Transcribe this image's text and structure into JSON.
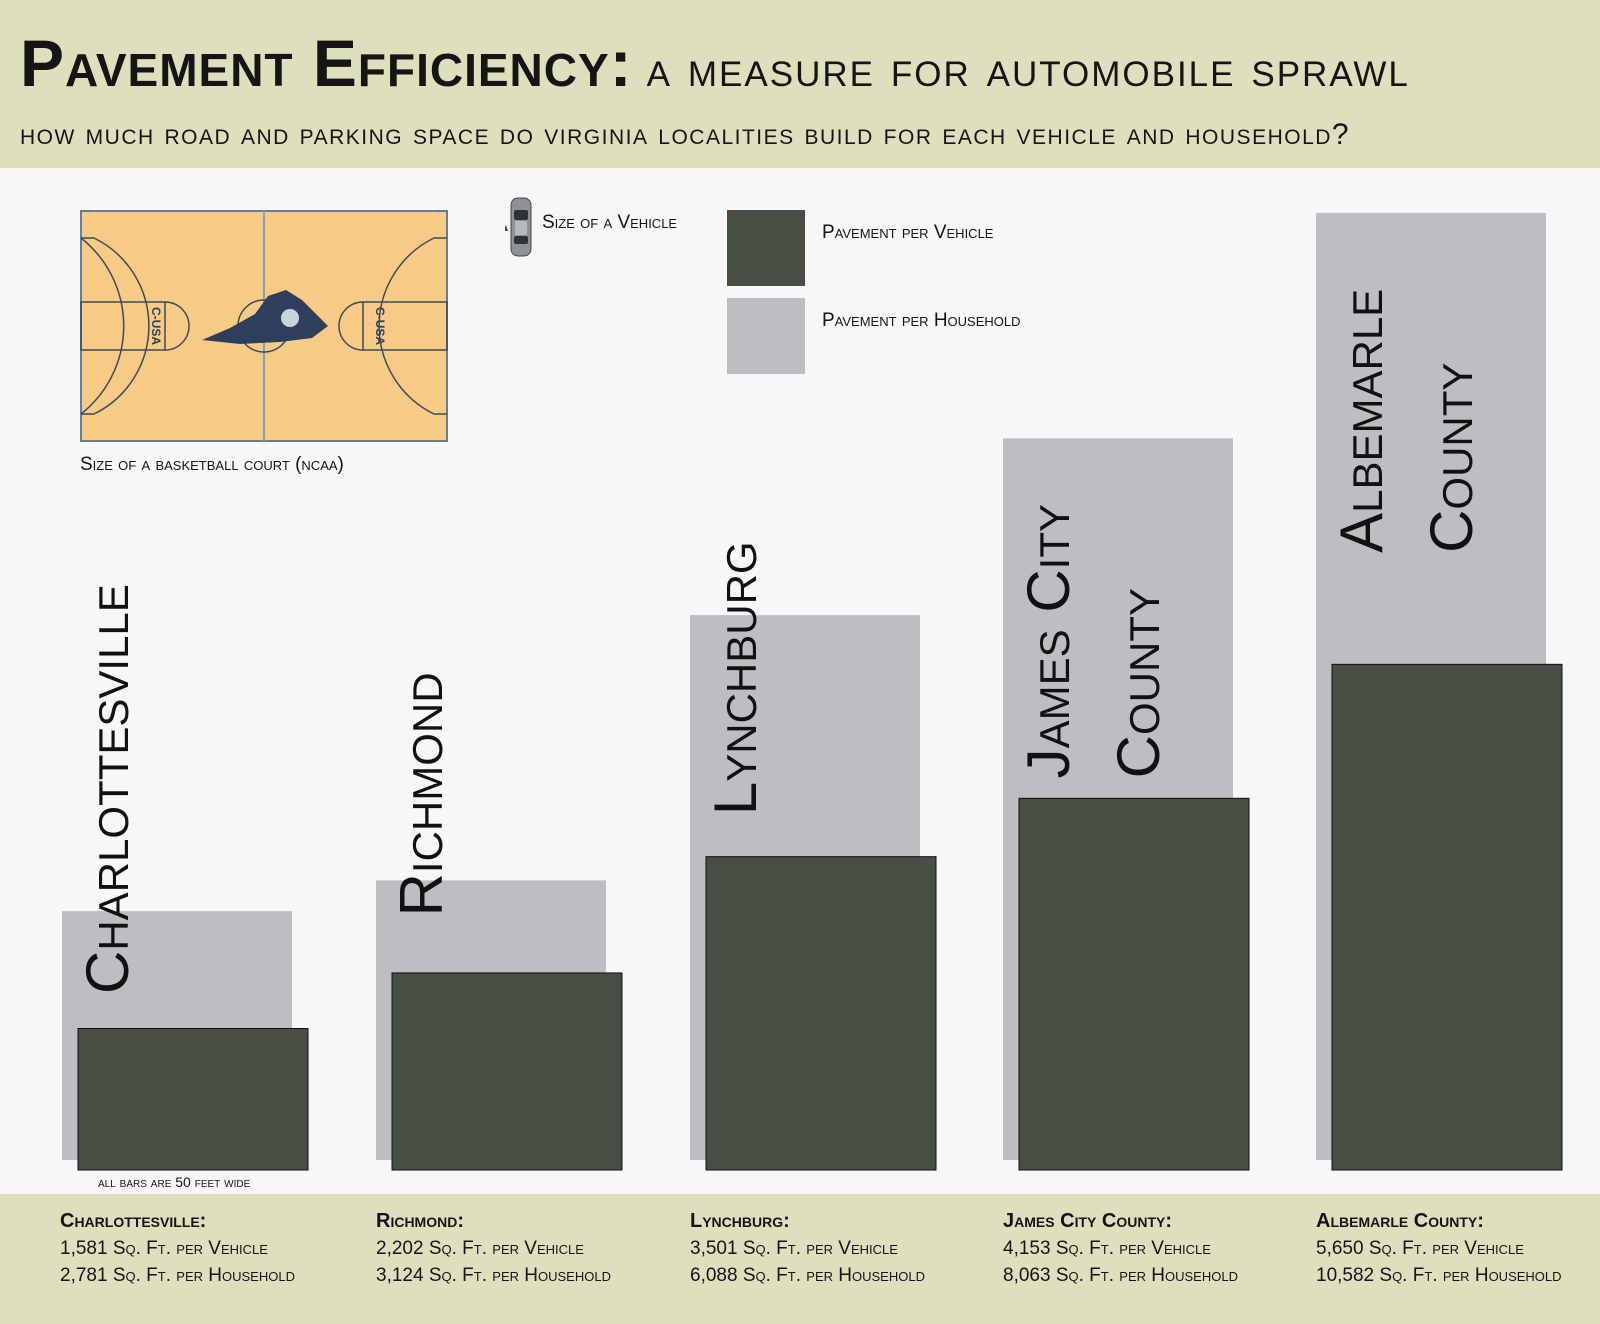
{
  "header": {
    "title_main": "Pavement Efficiency:",
    "title_rest": "a measure for automobile sprawl",
    "subtitle": "how much road and parking space do virginia localities build for each vehicle and household?"
  },
  "legend": {
    "car_label": "Size of a Vehicle",
    "court_caption": "Size of a basketball court (ncaa)",
    "court_logo_text": "C-USA",
    "vehicle_label": "Pavement per Vehicle",
    "household_label": "Pavement per Household"
  },
  "note": "all bars are 50 feet wide",
  "colors": {
    "vehicle": "#474f44",
    "household": "#bebec2",
    "band": "#dedfbd",
    "court": "#f7ca85"
  },
  "chart_data": {
    "type": "bar",
    "title": "Pavement Efficiency: a measure for automobile sprawl",
    "categories": [
      "Charlottesville",
      "Richmond",
      "Lynchburg",
      "James City County",
      "Albemarle County"
    ],
    "series": [
      {
        "name": "Pavement per Vehicle",
        "unit": "Sq. Ft.",
        "values": [
          1581,
          2202,
          3501,
          4153,
          5650
        ]
      },
      {
        "name": "Pavement per Household",
        "unit": "Sq. Ft.",
        "values": [
          2781,
          3124,
          6088,
          8063,
          10582
        ]
      }
    ],
    "bar_width_feet": 50
  },
  "stats": [
    {
      "name": "Charlottesville:",
      "vehicle": "1,581 Sq. Ft. per Vehicle",
      "household": "2,781 Sq. Ft. per Household"
    },
    {
      "name": "Richmond:",
      "vehicle": "2,202 Sq. Ft. per Vehicle",
      "household": "3,124 Sq. Ft. per Household"
    },
    {
      "name": "Lynchburg:",
      "vehicle": "3,501 Sq. Ft. per Vehicle",
      "household": "6,088 Sq. Ft. per Household"
    },
    {
      "name": "James City County:",
      "vehicle": "4,153 Sq. Ft. per Vehicle",
      "household": "8,063 Sq. Ft. per Household"
    },
    {
      "name": "Albemarle County:",
      "vehicle": "5,650 Sq. Ft. per Vehicle",
      "household": "10,582 Sq. Ft. per Household"
    }
  ],
  "bar_labels": [
    [
      "Charlottesville"
    ],
    [
      "Richmond"
    ],
    [
      "Lynchburg"
    ],
    [
      "James City",
      "County"
    ],
    [
      "Albemarle",
      "County"
    ]
  ]
}
